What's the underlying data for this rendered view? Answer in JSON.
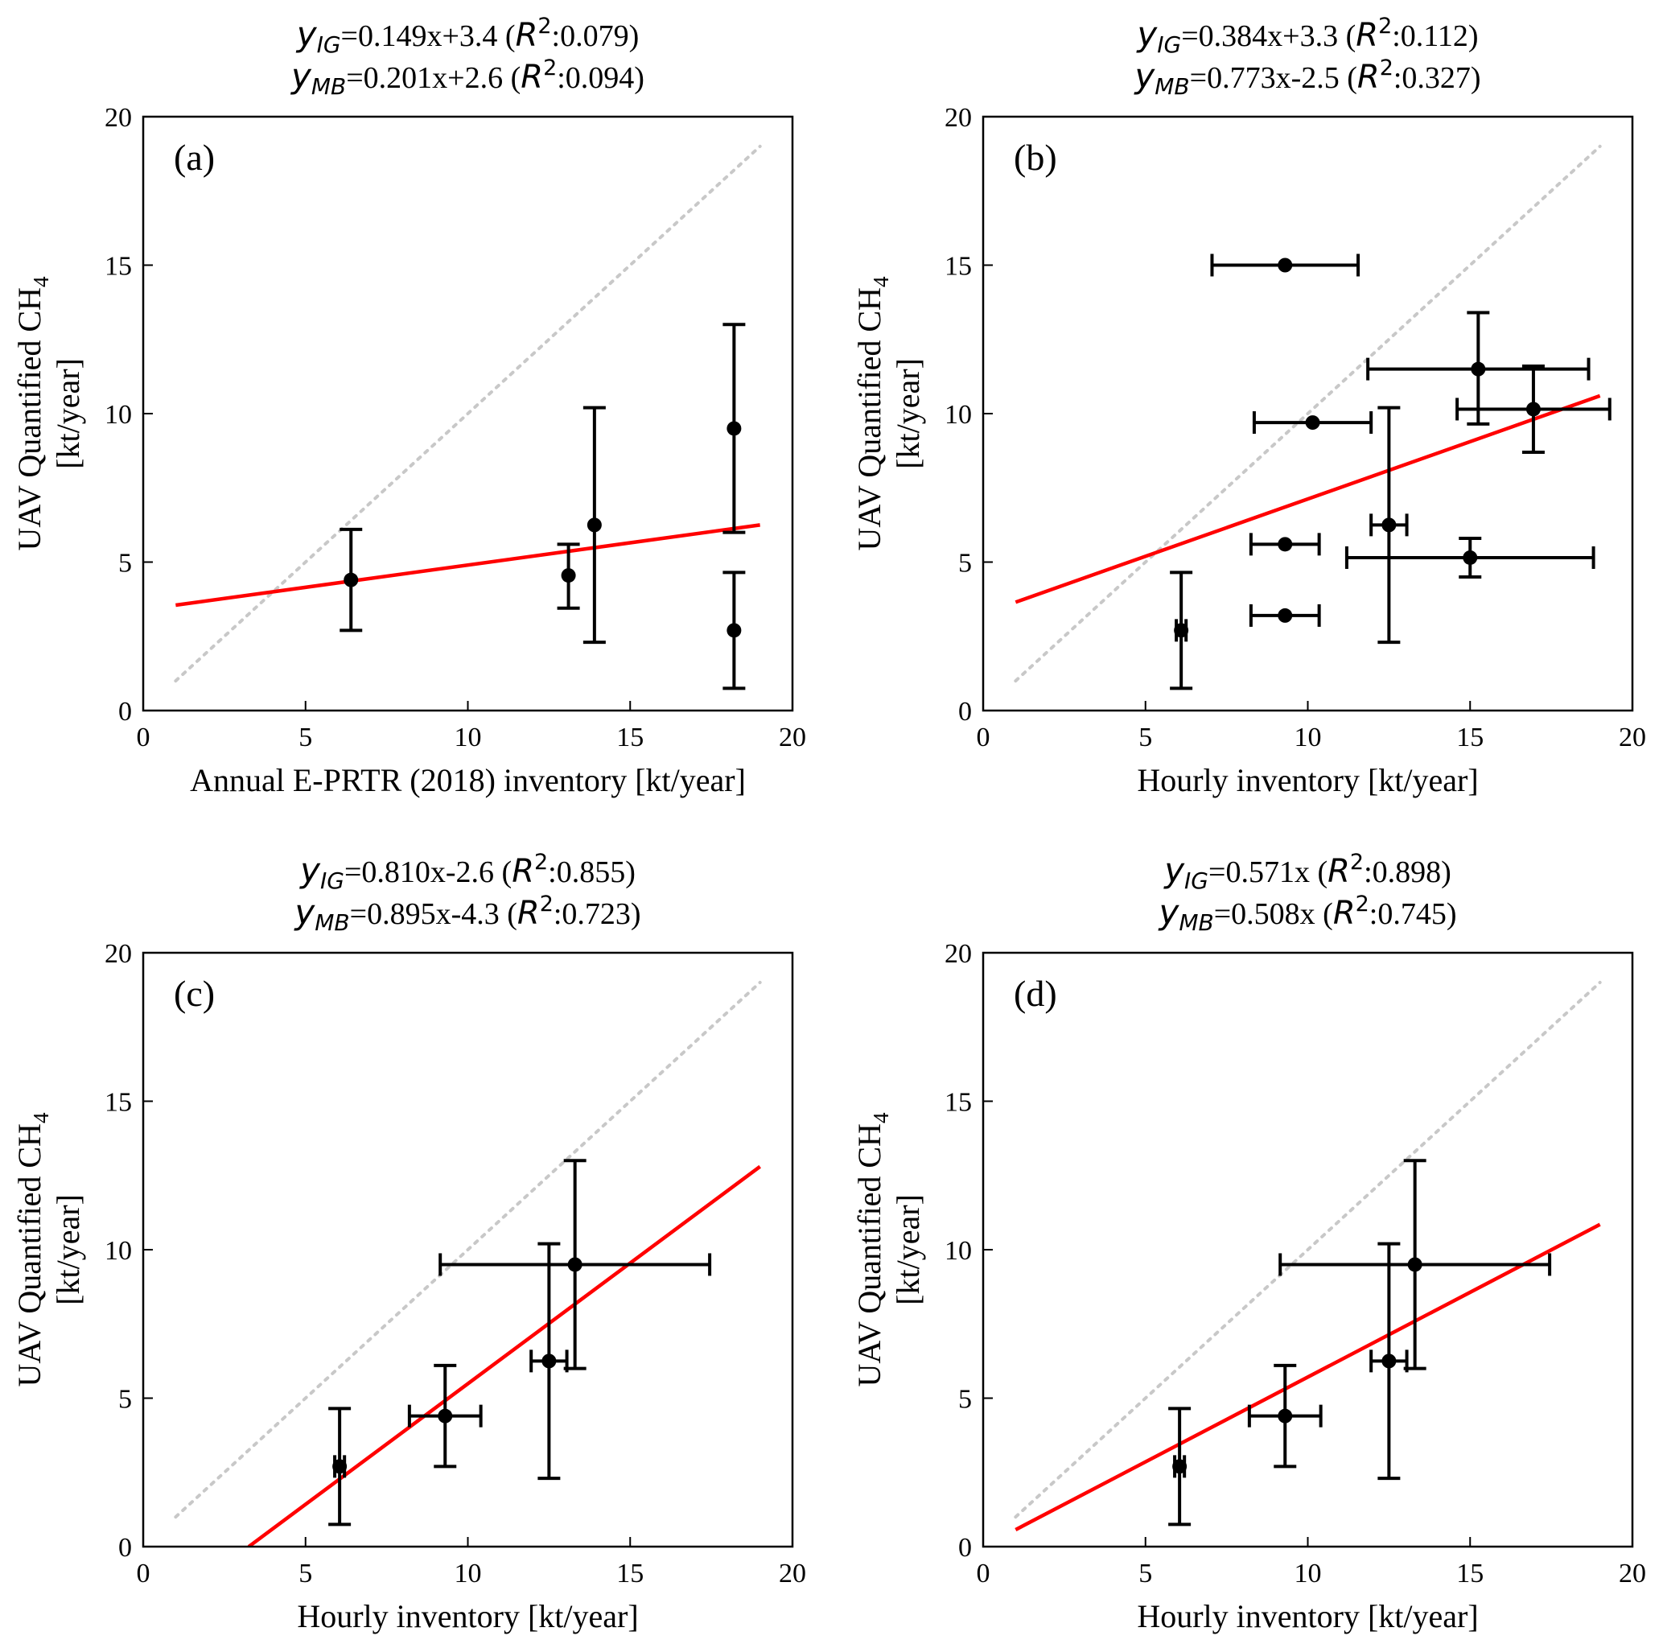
{
  "colors": {
    "points": "#000000",
    "fit_line": "#ff0000",
    "identity_line": "#c8c8c8"
  },
  "chart_data": [
    {
      "type": "scatter",
      "panel_label": "(a)",
      "title_lines": [
        {
          "sub": "IG",
          "eq": "=0.149x+3.4 (",
          "r2": ":0.079)"
        },
        {
          "sub": "MB",
          "eq": "=0.201x+2.6 (",
          "r2": ":0.094)"
        }
      ],
      "xlabel": "Annual E-PRTR (2018) inventory [kt/year]",
      "ylabel_main": "UAV Quantified CH",
      "ylabel_sub": "4",
      "ylabel_unit": "[kt/year]",
      "xlim": [
        0,
        20
      ],
      "ylim": [
        0,
        20
      ],
      "xticks": [
        "0",
        "5",
        "10",
        "15",
        "20"
      ],
      "yticks": [
        "0",
        "5",
        "10",
        "15",
        "20"
      ],
      "identity_line": {
        "x": [
          1,
          19
        ],
        "y": [
          1,
          19
        ]
      },
      "fit_line": {
        "x": [
          1,
          19
        ],
        "y": [
          3.55,
          6.25
        ]
      },
      "points": [
        {
          "x": 6.4,
          "y": 4.4,
          "xerr": 0,
          "yerr": [
            1.7,
            1.7
          ]
        },
        {
          "x": 13.1,
          "y": 4.55,
          "xerr": 0,
          "yerr": [
            1.1,
            1.05
          ]
        },
        {
          "x": 13.9,
          "y": 6.25,
          "xerr": 0,
          "yerr": [
            3.95,
            3.95
          ]
        },
        {
          "x": 18.2,
          "y": 9.5,
          "xerr": 0,
          "yerr": [
            3.5,
            3.5
          ]
        },
        {
          "x": 18.2,
          "y": 2.7,
          "xerr": 0,
          "yerr": [
            1.95,
            1.95
          ]
        }
      ]
    },
    {
      "type": "scatter",
      "panel_label": "(b)",
      "title_lines": [
        {
          "sub": "IG",
          "eq": "=0.384x+3.3 (",
          "r2": ":0.112)"
        },
        {
          "sub": "MB",
          "eq": "=0.773x-2.5 (",
          "r2": ":0.327)"
        }
      ],
      "xlabel": "Hourly inventory [kt/year]",
      "ylabel_main": "UAV Quantified CH",
      "ylabel_sub": "4",
      "ylabel_unit": "[kt/year]",
      "xlim": [
        0,
        20
      ],
      "ylim": [
        0,
        20
      ],
      "xticks": [
        "0",
        "5",
        "10",
        "15",
        "20"
      ],
      "yticks": [
        "0",
        "5",
        "10",
        "15",
        "20"
      ],
      "identity_line": {
        "x": [
          1,
          19
        ],
        "y": [
          1,
          19
        ]
      },
      "fit_line": {
        "x": [
          1,
          19
        ],
        "y": [
          3.65,
          10.6
        ]
      },
      "points": [
        {
          "x": 9.3,
          "y": 15.0,
          "xerr": [
            2.25,
            2.25
          ],
          "yerr": 0
        },
        {
          "x": 15.25,
          "y": 11.5,
          "xerr": [
            3.4,
            3.4
          ],
          "yerr": [
            1.85,
            1.9
          ]
        },
        {
          "x": 16.95,
          "y": 10.15,
          "xerr": [
            2.35,
            2.35
          ],
          "yerr": [
            1.45,
            1.45
          ]
        },
        {
          "x": 10.15,
          "y": 9.7,
          "xerr": [
            1.8,
            1.8
          ],
          "yerr": 0
        },
        {
          "x": 12.5,
          "y": 6.25,
          "xerr": [
            0.55,
            0.55
          ],
          "yerr": [
            3.95,
            3.95
          ]
        },
        {
          "x": 9.3,
          "y": 5.6,
          "xerr": [
            1.05,
            1.05
          ],
          "yerr": 0
        },
        {
          "x": 15.0,
          "y": 5.15,
          "xerr": [
            3.8,
            3.8
          ],
          "yerr": [
            0.65,
            0.65
          ]
        },
        {
          "x": 9.3,
          "y": 3.2,
          "xerr": [
            1.05,
            1.05
          ],
          "yerr": 0
        },
        {
          "x": 6.1,
          "y": 2.7,
          "xerr": [
            0.15,
            0.15
          ],
          "yerr": [
            1.95,
            1.95
          ]
        }
      ]
    },
    {
      "type": "scatter",
      "panel_label": "(c)",
      "title_lines": [
        {
          "sub": "IG",
          "eq": "=0.810x-2.6 (",
          "r2": ":0.855)"
        },
        {
          "sub": "MB",
          "eq": "=0.895x-4.3 (",
          "r2": ":0.723)"
        }
      ],
      "xlabel": "Hourly inventory [kt/year]",
      "ylabel_main": "UAV Quantified CH",
      "ylabel_sub": "4",
      "ylabel_unit": "[kt/year]",
      "xlim": [
        0,
        20
      ],
      "ylim": [
        0,
        20
      ],
      "xticks": [
        "0",
        "5",
        "10",
        "15",
        "20"
      ],
      "yticks": [
        "0",
        "5",
        "10",
        "15",
        "20"
      ],
      "identity_line": {
        "x": [
          1,
          19
        ],
        "y": [
          1,
          19
        ]
      },
      "fit_line": {
        "x": [
          3.25,
          19
        ],
        "y": [
          0,
          12.8
        ]
      },
      "points": [
        {
          "x": 6.05,
          "y": 2.7,
          "xerr": [
            0.15,
            0.15
          ],
          "yerr": [
            1.95,
            1.95
          ]
        },
        {
          "x": 9.3,
          "y": 4.4,
          "xerr": [
            1.1,
            1.1
          ],
          "yerr": [
            1.7,
            1.7
          ]
        },
        {
          "x": 12.5,
          "y": 6.25,
          "xerr": [
            0.55,
            0.55
          ],
          "yerr": [
            3.95,
            3.95
          ]
        },
        {
          "x": 13.3,
          "y": 9.5,
          "xerr": [
            4.15,
            4.15
          ],
          "yerr": [
            3.5,
            3.5
          ]
        }
      ]
    },
    {
      "type": "scatter",
      "panel_label": "(d)",
      "title_lines": [
        {
          "sub": "IG",
          "eq": "=0.571x (",
          "r2": ":0.898)"
        },
        {
          "sub": "MB",
          "eq": "=0.508x (",
          "r2": ":0.745)"
        }
      ],
      "xlabel": "Hourly inventory [kt/year]",
      "ylabel_main": "UAV Quantified CH",
      "ylabel_sub": "4",
      "ylabel_unit": "[kt/year]",
      "xlim": [
        0,
        20
      ],
      "ylim": [
        0,
        20
      ],
      "xticks": [
        "0",
        "5",
        "10",
        "15",
        "20"
      ],
      "yticks": [
        "0",
        "5",
        "10",
        "15",
        "20"
      ],
      "identity_line": {
        "x": [
          1,
          19
        ],
        "y": [
          1,
          19
        ]
      },
      "fit_line": {
        "x": [
          1,
          19
        ],
        "y": [
          0.57,
          10.85
        ]
      },
      "points": [
        {
          "x": 6.05,
          "y": 2.7,
          "xerr": [
            0.15,
            0.15
          ],
          "yerr": [
            1.95,
            1.95
          ]
        },
        {
          "x": 9.3,
          "y": 4.4,
          "xerr": [
            1.1,
            1.1
          ],
          "yerr": [
            1.7,
            1.7
          ]
        },
        {
          "x": 12.5,
          "y": 6.25,
          "xerr": [
            0.55,
            0.55
          ],
          "yerr": [
            3.95,
            3.95
          ]
        },
        {
          "x": 13.3,
          "y": 9.5,
          "xerr": [
            4.15,
            4.15
          ],
          "yerr": [
            3.5,
            3.5
          ]
        }
      ]
    }
  ]
}
